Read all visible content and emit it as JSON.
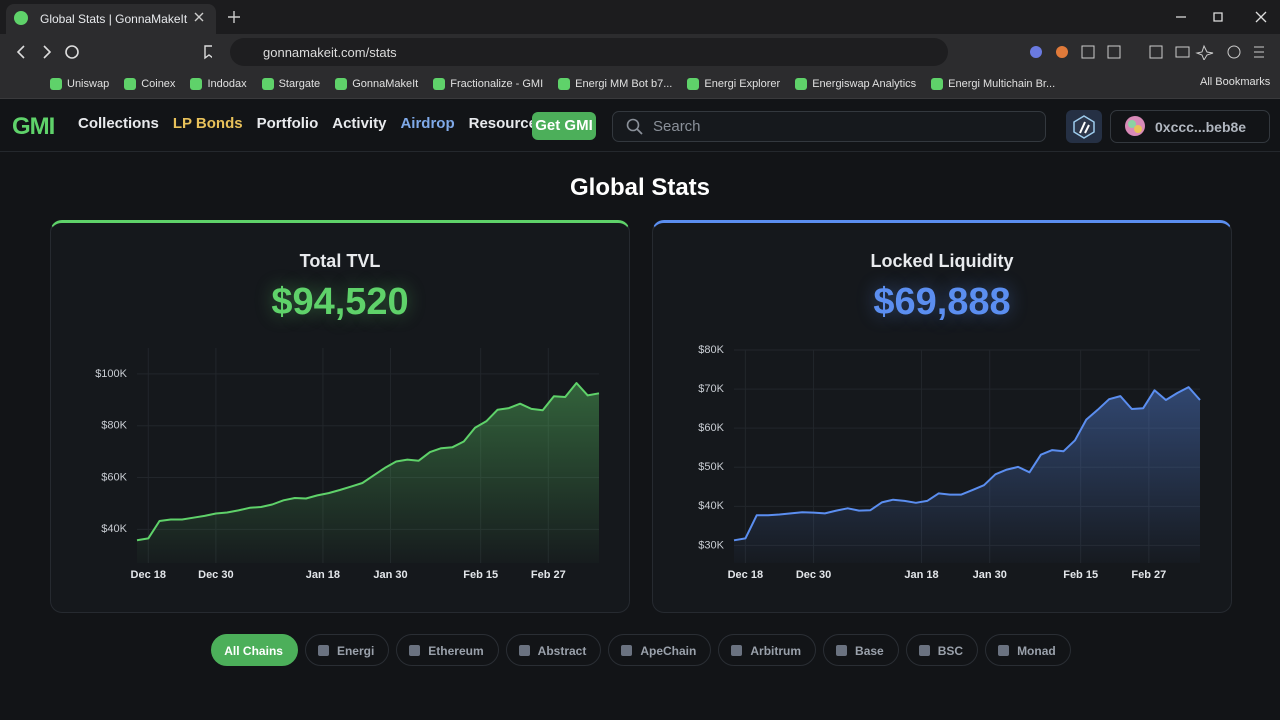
{
  "browser": {
    "tab_title": "Global Stats | GonnaMakeIt",
    "url": "gonnamakeit.com/stats",
    "bookmarks": [
      "Uniswap",
      "Coinex",
      "Indodax",
      "Stargate",
      "GonnaMakeIt",
      "Fractionalize - GMI",
      "Energi MM Bot  b7...",
      "Energi Explorer",
      "Energiswap Analytics",
      "Energi Multichain Br..."
    ],
    "all_bookmarks": "All Bookmarks"
  },
  "nav": {
    "logo": "GMI",
    "links": [
      "Collections",
      "LP Bonds",
      "Portfolio",
      "Activity",
      "Airdrop",
      "Resources"
    ],
    "cta": "Get GMI",
    "search_placeholder": "Search",
    "wallet": "0xccc...beb8e"
  },
  "page_title": "Global Stats",
  "chart_data": [
    {
      "type": "line",
      "title": "Total TVL",
      "headline": "$94,520",
      "color": "#5fd26a",
      "x": [
        -2,
        0,
        2,
        4,
        6,
        8,
        10,
        12,
        14,
        16,
        18,
        20,
        22,
        24,
        26,
        28,
        30,
        32,
        34,
        36,
        38,
        40,
        42,
        44,
        46,
        48,
        50,
        52,
        54,
        56,
        58,
        60,
        62,
        64,
        66,
        68,
        70,
        72,
        74,
        76,
        78,
        80
      ],
      "values": [
        35800,
        36500,
        43200,
        43800,
        43800,
        44500,
        45200,
        46100,
        46500,
        47300,
        48300,
        48600,
        49600,
        51200,
        52100,
        51900,
        53100,
        54000,
        55200,
        56500,
        57900,
        60800,
        63700,
        66200,
        66900,
        66500,
        69800,
        71300,
        71700,
        73900,
        79200,
        81700,
        86200,
        86800,
        88500,
        86500,
        86000,
        91400,
        91100,
        96500,
        91700,
        92500
      ],
      "xlim": [
        -2,
        80
      ],
      "xticks": [
        {
          "value": 0,
          "label": "Dec 18"
        },
        {
          "value": 12,
          "label": "Dec 30"
        },
        {
          "value": 31,
          "label": "Jan 18"
        },
        {
          "value": 43,
          "label": "Jan 30"
        },
        {
          "value": 59,
          "label": "Feb 15"
        },
        {
          "value": 71,
          "label": "Feb 27"
        }
      ],
      "ylim": [
        27000,
        110000
      ],
      "yticks": [
        {
          "value": 40000,
          "label": "$40K"
        },
        {
          "value": 60000,
          "label": "$60K"
        },
        {
          "value": 80000,
          "label": "$80K"
        },
        {
          "value": 100000,
          "label": "$100K"
        }
      ],
      "grid": true
    },
    {
      "type": "line",
      "title": "Locked Liquidity",
      "headline": "$69,888",
      "color": "#5b8ef0",
      "x": [
        -2,
        0,
        2,
        4,
        6,
        8,
        10,
        12,
        14,
        16,
        18,
        20,
        22,
        24,
        26,
        28,
        30,
        32,
        34,
        36,
        38,
        40,
        42,
        44,
        46,
        48,
        50,
        52,
        54,
        56,
        58,
        60,
        62,
        64,
        66,
        68,
        70,
        72,
        74,
        76,
        78,
        80
      ],
      "values": [
        31300,
        31800,
        37700,
        37700,
        37900,
        38200,
        38500,
        38400,
        38200,
        38900,
        39500,
        38900,
        39000,
        41000,
        41700,
        41400,
        40900,
        41400,
        43300,
        43000,
        43000,
        44200,
        45400,
        48200,
        49400,
        50100,
        48700,
        53200,
        54400,
        54100,
        56900,
        62200,
        64700,
        67400,
        68200,
        64900,
        65100,
        69700,
        67200,
        69000,
        70500,
        67200
      ],
      "xlim": [
        -2,
        80
      ],
      "xticks": [
        {
          "value": 0,
          "label": "Dec 18"
        },
        {
          "value": 12,
          "label": "Dec 30"
        },
        {
          "value": 31,
          "label": "Jan 18"
        },
        {
          "value": 43,
          "label": "Jan 30"
        },
        {
          "value": 59,
          "label": "Feb 15"
        },
        {
          "value": 71,
          "label": "Feb 27"
        }
      ],
      "ylim": [
        25500,
        80000
      ],
      "yticks": [
        {
          "value": 30000,
          "label": "$30K"
        },
        {
          "value": 40000,
          "label": "$40K"
        },
        {
          "value": 50000,
          "label": "$50K"
        },
        {
          "value": 60000,
          "label": "$60K"
        },
        {
          "value": 70000,
          "label": "$70K"
        },
        {
          "value": 80000,
          "label": "$80K"
        }
      ],
      "grid": true
    }
  ],
  "chains": [
    "All Chains",
    "Energi",
    "Ethereum",
    "Abstract",
    "ApeChain",
    "Arbitrum",
    "Base",
    "BSC",
    "Monad"
  ]
}
